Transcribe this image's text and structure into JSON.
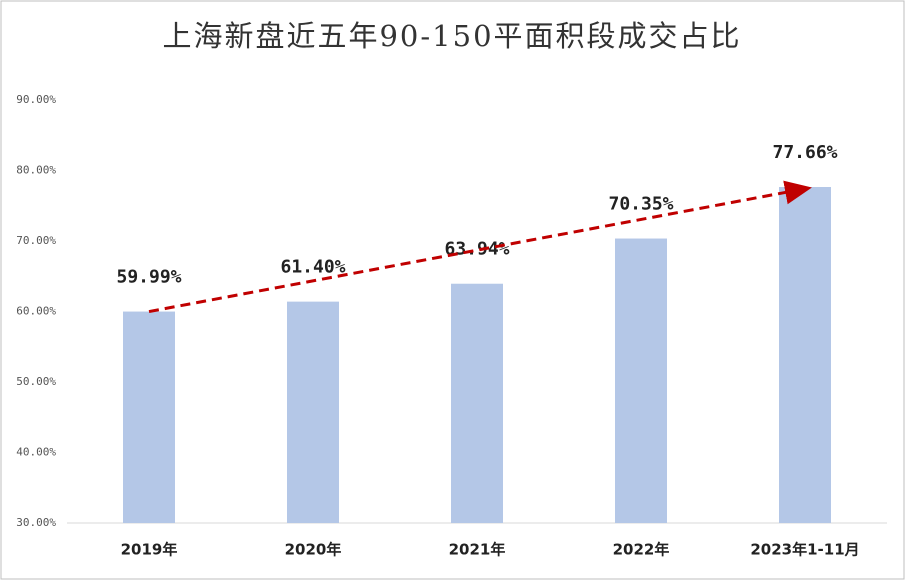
{
  "chart_data": {
    "type": "bar",
    "title": "上海新盘近五年90-150平面积段成交占比",
    "categories": [
      "2019年",
      "2020年",
      "2021年",
      "2022年",
      "2023年1-11月"
    ],
    "values": [
      59.99,
      61.4,
      63.94,
      70.35,
      77.66
    ],
    "value_labels": [
      "59.99%",
      "61.40%",
      "63.94%",
      "70.35%",
      "77.66%"
    ],
    "color": "#b4c7e7",
    "ylim": [
      30,
      90
    ],
    "yticks": [
      {
        "value": 30,
        "label": "30.00%"
      },
      {
        "value": 40,
        "label": "40.00%"
      },
      {
        "value": 50,
        "label": "50.00%"
      },
      {
        "value": 60,
        "label": "60.00%"
      },
      {
        "value": 70,
        "label": "70.00%"
      },
      {
        "value": 80,
        "label": "80.00%"
      },
      {
        "value": 90,
        "label": "90.00%"
      }
    ],
    "grid": false
  }
}
